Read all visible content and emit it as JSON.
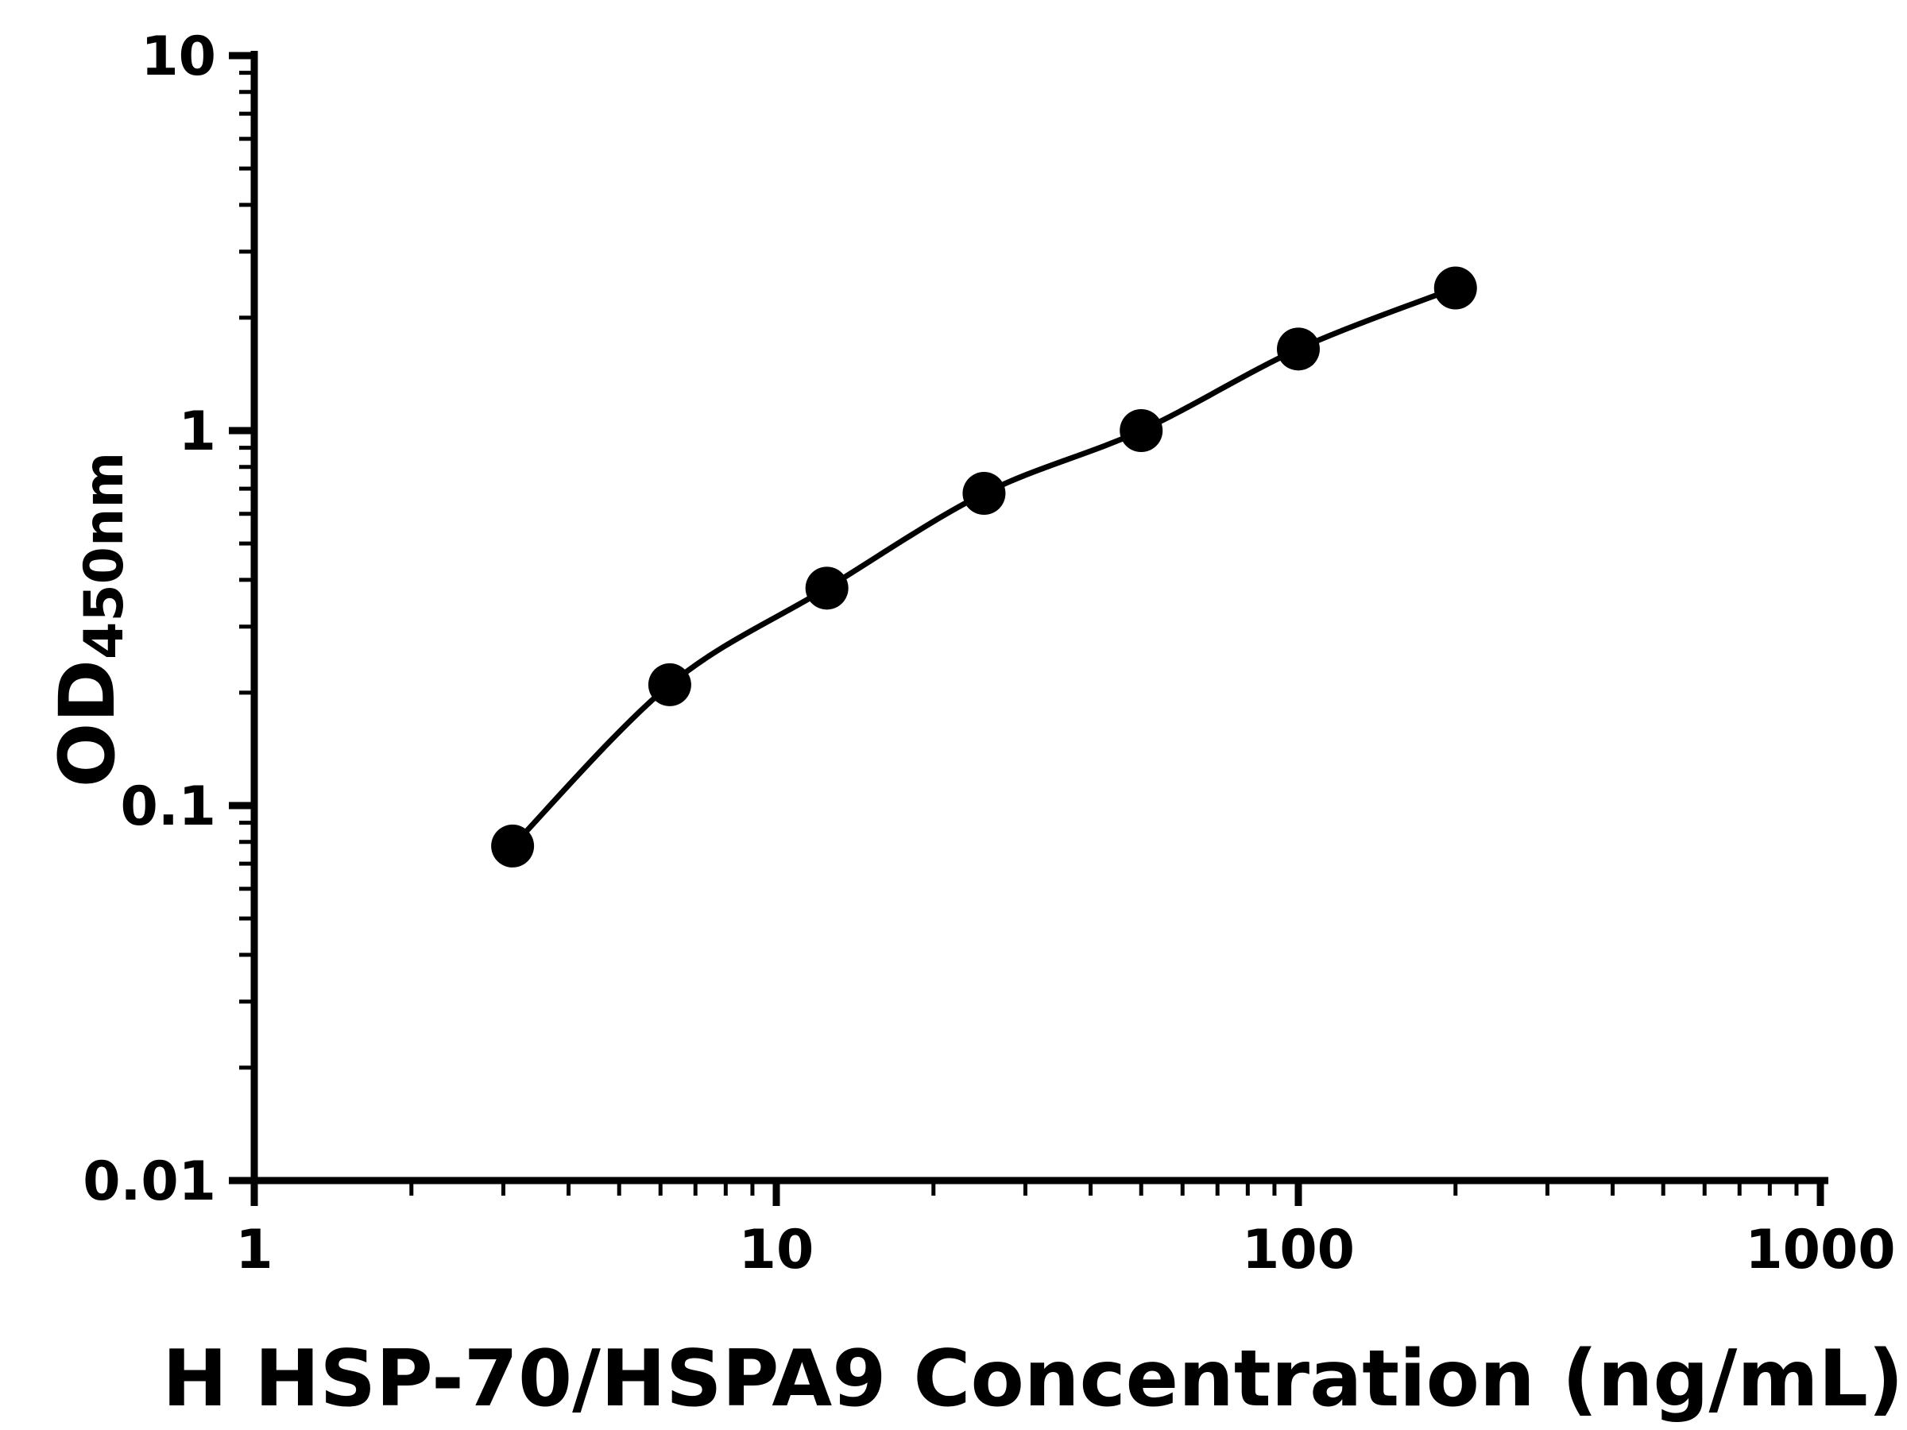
{
  "chart_data": {
    "type": "scatter",
    "line_through_points": true,
    "x": [
      3.125,
      6.25,
      12.5,
      25,
      50,
      100,
      200
    ],
    "y": [
      0.078,
      0.21,
      0.38,
      0.68,
      1.0,
      1.65,
      2.4
    ],
    "title": "",
    "xlabel": "H HSP-70/HSPA9 Concentration (ng/mL)",
    "ylabel_main": "OD",
    "ylabel_sub": "450nm",
    "x_scale": "log",
    "y_scale": "log",
    "xlim": [
      1,
      1000
    ],
    "ylim": [
      0.01,
      10
    ],
    "x_tick_values": [
      1,
      10,
      100,
      1000
    ],
    "x_tick_labels": [
      "1",
      "10",
      "100",
      "1000"
    ],
    "y_tick_values": [
      0.01,
      0.1,
      1,
      10
    ],
    "y_tick_labels": [
      "0.01",
      "0.1",
      "1",
      "10"
    ],
    "minor_ticks": true,
    "grid": false,
    "legend": false,
    "marker_color": "#000000",
    "line_color": "#000000",
    "axis_color": "#000000",
    "background_color": "#ffffff"
  }
}
